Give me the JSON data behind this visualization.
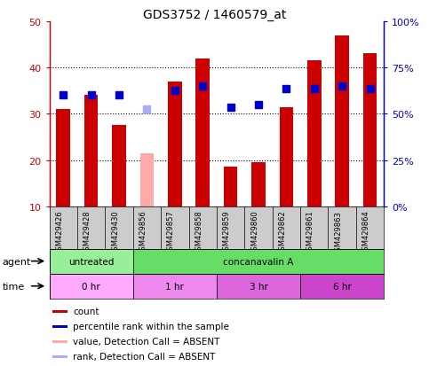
{
  "title": "GDS3752 / 1460579_at",
  "samples": [
    "GSM429426",
    "GSM429428",
    "GSM429430",
    "GSM429856",
    "GSM429857",
    "GSM429858",
    "GSM429859",
    "GSM429860",
    "GSM429862",
    "GSM429861",
    "GSM429863",
    "GSM429864"
  ],
  "bar_values": [
    31,
    34,
    27.5,
    21.5,
    37,
    42,
    18.5,
    19.5,
    31.5,
    41.5,
    47,
    43
  ],
  "bar_colors": [
    "#cc0000",
    "#cc0000",
    "#cc0000",
    "#ffaaaa",
    "#cc0000",
    "#cc0000",
    "#cc0000",
    "#cc0000",
    "#cc0000",
    "#cc0000",
    "#cc0000",
    "#cc0000"
  ],
  "dot_values": [
    34,
    34,
    34,
    31,
    35,
    36,
    31.5,
    32,
    35.5,
    35.5,
    36,
    35.5
  ],
  "dot_colors": [
    "#0000cc",
    "#0000cc",
    "#0000cc",
    "#aaaaff",
    "#0000cc",
    "#0000cc",
    "#0000cc",
    "#0000cc",
    "#0000cc",
    "#0000cc",
    "#0000cc",
    "#0000cc"
  ],
  "ylim_left": [
    10,
    50
  ],
  "ylim_right": [
    0,
    100
  ],
  "yticks_left": [
    10,
    20,
    30,
    40,
    50
  ],
  "yticks_right": [
    0,
    25,
    50,
    75,
    100
  ],
  "ytick_labels_right": [
    "0%",
    "25%",
    "50%",
    "75%",
    "100%"
  ],
  "agent_groups": [
    {
      "label": "untreated",
      "start": 0,
      "end": 3,
      "color": "#99ee99"
    },
    {
      "label": "concanavalin A",
      "start": 3,
      "end": 12,
      "color": "#66dd66"
    }
  ],
  "time_groups": [
    {
      "label": "0 hr",
      "start": 0,
      "end": 3,
      "color": "#ffaaff"
    },
    {
      "label": "1 hr",
      "start": 3,
      "end": 6,
      "color": "#ee88ee"
    },
    {
      "label": "3 hr",
      "start": 6,
      "end": 9,
      "color": "#dd66dd"
    },
    {
      "label": "6 hr",
      "start": 9,
      "end": 12,
      "color": "#cc44cc"
    }
  ],
  "legend_items": [
    {
      "label": "count",
      "color": "#cc0000"
    },
    {
      "label": "percentile rank within the sample",
      "color": "#0000cc"
    },
    {
      "label": "value, Detection Call = ABSENT",
      "color": "#ffaaaa"
    },
    {
      "label": "rank, Detection Call = ABSENT",
      "color": "#aaaaff"
    }
  ],
  "bar_width": 0.5,
  "dot_size": 30,
  "axis_left_color": "#cc0000",
  "axis_right_color": "#0000cc",
  "sample_area_color": "#cccccc"
}
